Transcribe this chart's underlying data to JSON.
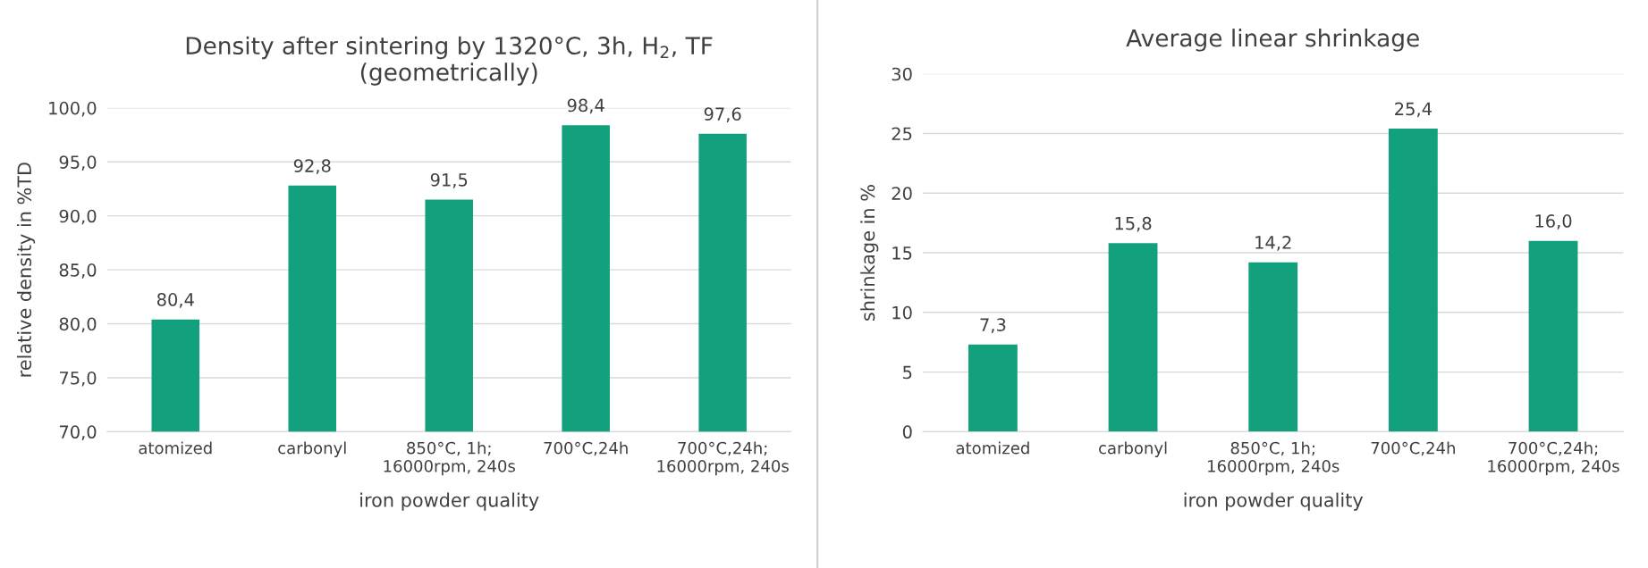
{
  "chart_data": [
    {
      "type": "bar",
      "title": "Density after sintering by 1320°C, 3h, H$_{2}$, TF\n(geometrically)",
      "xlabel": "iron powder quality",
      "ylabel": "relative density in %TD",
      "categories": [
        "atomized",
        "carbonyl",
        "850°C, 1h;\n16000rpm, 240s",
        "700°C,24h",
        "700°C,24h;\n16000rpm, 240s"
      ],
      "values": [
        80.4,
        92.8,
        91.5,
        98.4,
        97.6
      ],
      "color": "#12a07d",
      "value_labels": [
        "80,4",
        "92,8",
        "91,5",
        "98,4",
        "97,6"
      ],
      "ylim": [
        70,
        100
      ],
      "yticks": [
        {
          "value": 70,
          "label": "70,0"
        },
        {
          "value": 75,
          "label": "75,0"
        },
        {
          "value": 80,
          "label": "80,0"
        },
        {
          "value": 85,
          "label": "85,0"
        },
        {
          "value": 90,
          "label": "90,0"
        },
        {
          "value": 95,
          "label": "95,0"
        },
        {
          "value": 100,
          "label": "100,0"
        }
      ],
      "grid": "y"
    },
    {
      "type": "bar",
      "title": "Average linear shrinkage",
      "xlabel": "iron powder quality",
      "ylabel": "shrinkage in %",
      "categories": [
        "atomized",
        "carbonyl",
        "850°C, 1h;\n16000rpm, 240s",
        "700°C,24h",
        "700°C,24h;\n16000rpm, 240s"
      ],
      "values": [
        7.3,
        15.8,
        14.2,
        25.4,
        16.0
      ],
      "color": "#12a07d",
      "value_labels": [
        "7,3",
        "15,8",
        "14,2",
        "25,4",
        "16,0"
      ],
      "ylim": [
        0,
        30
      ],
      "yticks": [
        0,
        5,
        10,
        15,
        20,
        25,
        30
      ],
      "grid": "y"
    }
  ]
}
